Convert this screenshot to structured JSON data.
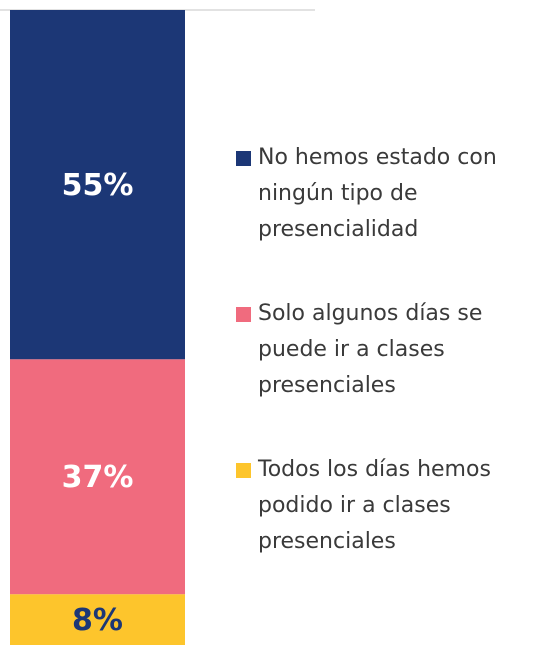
{
  "chart_data": {
    "type": "stacked-bar",
    "categories": [
      null
    ],
    "ylim": [
      0,
      100
    ],
    "series": [
      {
        "name": "No hemos estado con ningún tipo de presencialidad",
        "color": "#1c3776",
        "values": [
          55
        ],
        "value_labels": [
          "55%"
        ],
        "label_color": "#ffffff"
      },
      {
        "name": "Solo algunos días se puede ir a clases presenciales",
        "color": "#f06b7e",
        "values": [
          37
        ],
        "value_labels": [
          "37%"
        ],
        "label_color": "#ffffff"
      },
      {
        "name": "Todos los días hemos podido ir a clases presenciales",
        "color": "#fdc52c",
        "values": [
          8
        ],
        "value_labels": [
          "8%"
        ],
        "label_color": "#1c3776"
      }
    ]
  }
}
